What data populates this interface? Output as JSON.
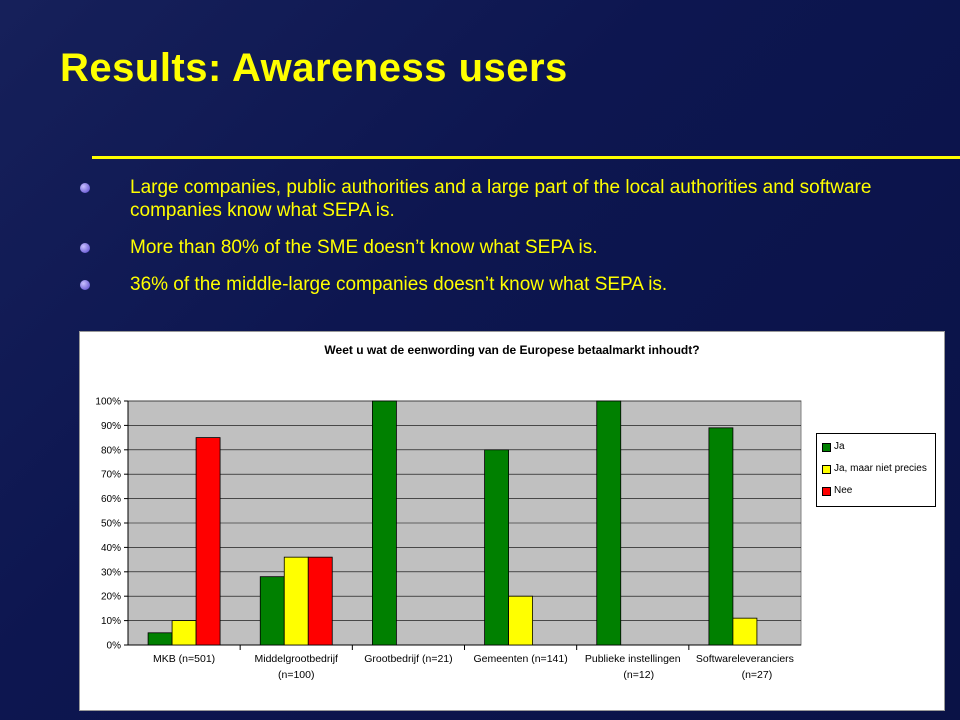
{
  "slide": {
    "title": "Results: Awareness users",
    "bullets": [
      "Large companies, public authorities and a large part of the local authorities and software companies know what SEPA is.",
      "More than 80% of the SME doesn’t know what SEPA is.",
      "36% of the middle-large companies doesn’t know what SEPA is."
    ]
  },
  "chart_data": {
    "type": "bar",
    "title": "Weet u wat de eenwording van de Europese betaalmarkt inhoudt?",
    "categories": [
      [
        "MKB (n=501)"
      ],
      [
        "Middelgrootbedrijf",
        "(n=100)"
      ],
      [
        "Grootbedrijf (n=21)"
      ],
      [
        "Gemeenten (n=141)"
      ],
      [
        "Publieke instellingen",
        "(n=12)"
      ],
      [
        "Softwareleveranciers",
        "(n=27)"
      ]
    ],
    "series": [
      {
        "name": "Ja",
        "color": "#008000",
        "values": [
          5,
          28,
          100,
          80,
          100,
          89
        ]
      },
      {
        "name": "Ja, maar niet precies",
        "color": "#ffff00",
        "values": [
          10,
          36,
          0,
          20,
          0,
          11
        ]
      },
      {
        "name": "Nee",
        "color": "#ff0000",
        "values": [
          85,
          36,
          0,
          0,
          0,
          0
        ]
      }
    ],
    "ylim": [
      0,
      100
    ],
    "yticks": [
      "0%",
      "10%",
      "20%",
      "30%",
      "40%",
      "50%",
      "60%",
      "70%",
      "80%",
      "90%",
      "100%"
    ],
    "plot_background": "#c0c0c0",
    "legend_position": "right"
  }
}
